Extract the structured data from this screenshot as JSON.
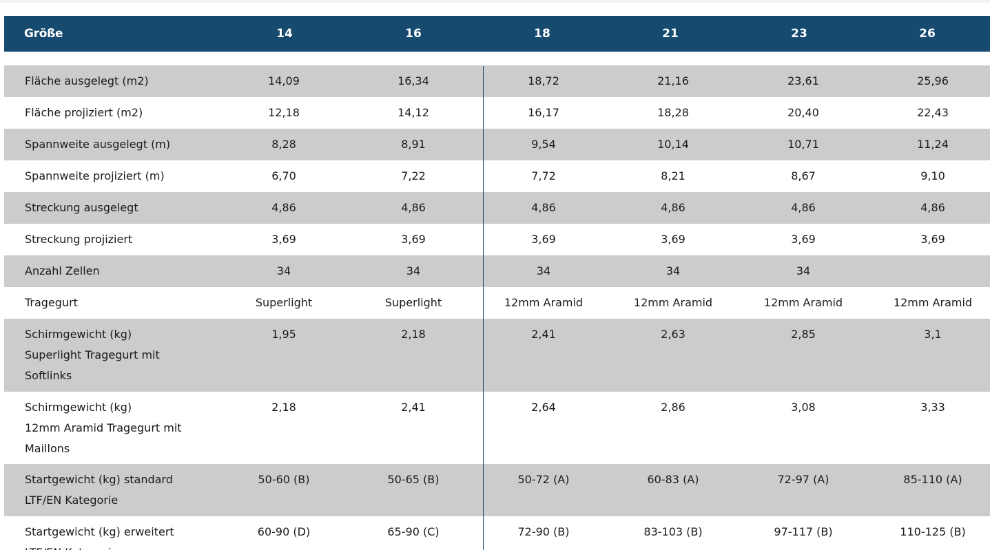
{
  "header": {
    "label": "Größe",
    "sizes": [
      "14",
      "16",
      "18",
      "21",
      "23",
      "26"
    ]
  },
  "rows": [
    {
      "label_lines": [
        "Fläche ausgelegt (m2)"
      ],
      "values": [
        "14,09",
        "16,34",
        "18,72",
        "21,16",
        "23,61",
        "25,96"
      ]
    },
    {
      "label_lines": [
        "Fläche projiziert (m2)"
      ],
      "values": [
        "12,18",
        "14,12",
        "16,17",
        "18,28",
        "20,40",
        "22,43"
      ]
    },
    {
      "label_lines": [
        "Spannweite ausgelegt (m)"
      ],
      "values": [
        "8,28",
        "8,91",
        "9,54",
        "10,14",
        "10,71",
        "11,24"
      ]
    },
    {
      "label_lines": [
        "Spannweite projiziert (m)"
      ],
      "values": [
        "6,70",
        "7,22",
        "7,72",
        "8,21",
        "8,67",
        "9,10"
      ]
    },
    {
      "label_lines": [
        "Streckung ausgelegt"
      ],
      "values": [
        "4,86",
        "4,86",
        "4,86",
        "4,86",
        "4,86",
        "4,86"
      ]
    },
    {
      "label_lines": [
        "Streckung projiziert"
      ],
      "values": [
        "3,69",
        "3,69",
        "3,69",
        "3,69",
        "3,69",
        "3,69"
      ]
    },
    {
      "label_lines": [
        "Anzahl Zellen"
      ],
      "values": [
        "34",
        "34",
        "34",
        "34",
        "34",
        ""
      ]
    },
    {
      "label_lines": [
        "Tragegurt"
      ],
      "values": [
        "Superlight",
        "Superlight",
        "12mm Aramid",
        "12mm Aramid",
        "12mm Aramid",
        "12mm Aramid"
      ]
    },
    {
      "label_lines": [
        "Schirmgewicht (kg)",
        "Superlight Tragegurt mit",
        "Softlinks"
      ],
      "values": [
        "1,95",
        "2,18",
        "2,41",
        "2,63",
        "2,85",
        "3,1"
      ]
    },
    {
      "label_lines": [
        "Schirmgewicht (kg)",
        "12mm Aramid Tragegurt mit",
        "Maillons"
      ],
      "values": [
        "2,18",
        "2,41",
        "2,64",
        "2,86",
        "3,08",
        "3,33"
      ]
    },
    {
      "label_lines": [
        "Startgewicht (kg) standard",
        "LTF/EN Kategorie"
      ],
      "values": [
        "50-60 (B)",
        "50-65 (B)",
        "50-72 (A)",
        "60-83 (A)",
        "72-97 (A)",
        "85-110 (A)"
      ]
    },
    {
      "label_lines": [
        "Startgewicht (kg) erweitert",
        "LTF/EN Kategorie"
      ],
      "values": [
        "60-90 (D)",
        "65-90 (C)",
        "72-90 (B)",
        "83-103 (B)",
        "97-117 (B)",
        "110-125 (B)"
      ]
    }
  ]
}
